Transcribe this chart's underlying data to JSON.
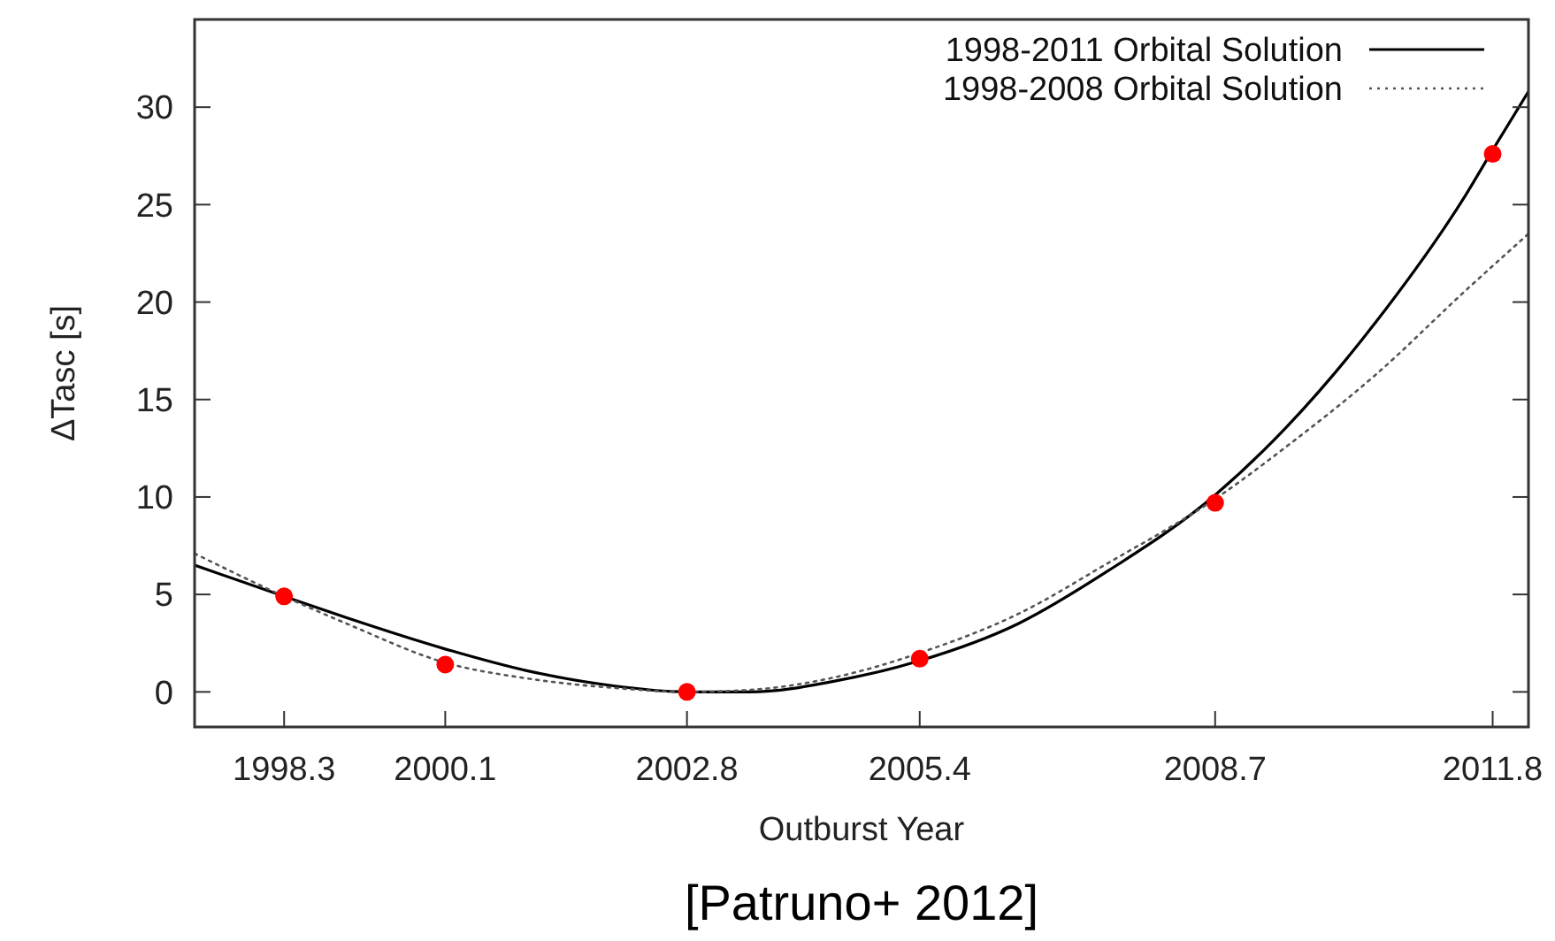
{
  "chart_data": {
    "type": "line",
    "xlabel": "Outburst Year",
    "ylabel": "ΔTasc [s]",
    "annotations": [
      "[Patruno+ 2012]"
    ],
    "xlim": [
      1997.3,
      2012.2
    ],
    "ylim": [
      -1.8,
      34.5
    ],
    "xticks": [
      1998.3,
      2000.1,
      2002.8,
      2005.4,
      2008.7,
      2011.8
    ],
    "yticks": [
      0,
      5,
      10,
      15,
      20,
      25,
      30
    ],
    "grid": false,
    "legend": "top right",
    "series": [
      {
        "name": "1998-2011 Orbital Solution",
        "color": "#000000",
        "line_style": "solid",
        "marker": "none",
        "x": [
          1997.3,
          1998.3,
          1999,
          2000.1,
          2001,
          2002,
          2002.8,
          2003.5,
          2004.5,
          2005.4,
          2006.5,
          2007.5,
          2008.7,
          2009.5,
          2010.5,
          2011.5,
          2011.8,
          2012.2
        ],
        "values": [
          6.5,
          4.9,
          3.8,
          2.2,
          1.1,
          0.3,
          0.0,
          0.0,
          0.6,
          1.6,
          3.5,
          6.2,
          10.1,
          13.6,
          19.0,
          25.5,
          27.8,
          30.8
        ]
      },
      {
        "name": "1998-2008 Orbital Solution",
        "color": "#555555",
        "line_style": "dotted",
        "marker": "none",
        "x": [
          1997.3,
          1998.3,
          1999,
          2000.1,
          2001,
          2002,
          2002.8,
          2003.5,
          2004.5,
          2005.4,
          2006.5,
          2007.5,
          2008.7,
          2009.5,
          2010.5,
          2011.5,
          2012.2
        ],
        "values": [
          7.1,
          4.9,
          3.5,
          1.5,
          0.7,
          0.2,
          0.0,
          0.1,
          0.8,
          2.0,
          4.0,
          6.6,
          9.9,
          12.6,
          16.3,
          20.6,
          23.5
        ]
      },
      {
        "type": "scatter",
        "color": "#ff0000",
        "marker": "circle",
        "x": [
          1998.3,
          2000.1,
          2002.8,
          2005.4,
          2008.7,
          2011.8
        ],
        "values": [
          4.9,
          1.4,
          0.0,
          1.7,
          9.7,
          27.6
        ]
      }
    ]
  }
}
